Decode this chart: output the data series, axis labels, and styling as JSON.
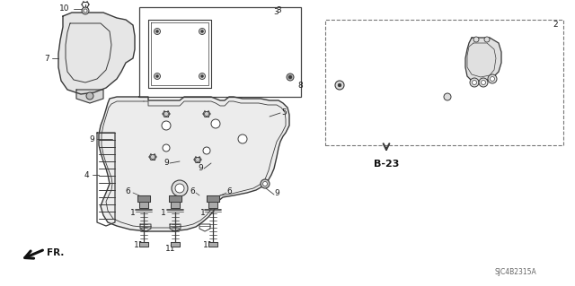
{
  "bg_color": "#ffffff",
  "line_color": "#3a3a3a",
  "label_color": "#1a1a1a",
  "diagram_code": "SJC4B2315A",
  "ref_code": "B-23",
  "gray_fill": "#d8d8d8",
  "dark_gray": "#555555",
  "med_gray": "#888888"
}
